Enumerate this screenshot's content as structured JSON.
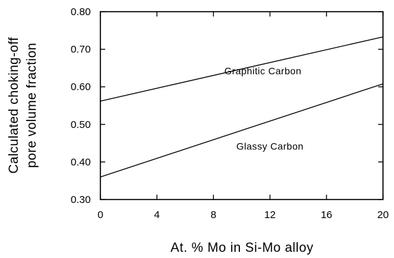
{
  "chart_data": {
    "type": "line",
    "title": "",
    "xlabel": "At. % Mo in Si-Mo alloy",
    "ylabel_lines": [
      "Calculated choking-off",
      "pore volume fraction"
    ],
    "xlim": [
      0,
      20
    ],
    "ylim": [
      0.3,
      0.8
    ],
    "xticks": [
      0,
      4,
      8,
      12,
      16,
      20
    ],
    "xtick_labels": [
      "0",
      "4",
      "8",
      "12",
      "16",
      "20"
    ],
    "yticks": [
      0.3,
      0.4,
      0.5,
      0.6,
      0.7,
      0.8
    ],
    "ytick_labels": [
      "0.30",
      "0.40",
      "0.50",
      "0.60",
      "0.70",
      "0.80"
    ],
    "grid": false,
    "legend": "none",
    "series": [
      {
        "x": [
          0,
          20
        ],
        "y": [
          0.562,
          0.733
        ],
        "color": "#000000"
      },
      {
        "x": [
          0,
          20
        ],
        "y": [
          0.36,
          0.608
        ],
        "color": "#000000"
      }
    ],
    "annotations": [
      {
        "text": "Graphitic Carbon",
        "x": 11.5,
        "y": 0.633
      },
      {
        "text": "Glassy Carbon",
        "x": 12.0,
        "y": 0.433
      }
    ]
  }
}
